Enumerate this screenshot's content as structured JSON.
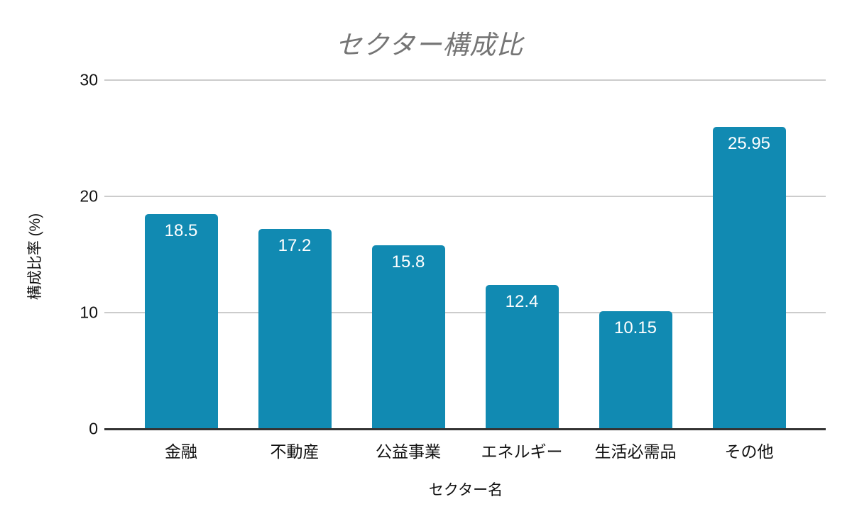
{
  "chart": {
    "title": "セクター構成比",
    "colors": {
      "bar": "#118ab2",
      "grid": "#cccccc",
      "axis_line": "#333333",
      "title_text": "#757575",
      "tick_text": "#111111",
      "value_label_text": "#ffffff"
    }
  },
  "chart_data": {
    "type": "bar",
    "title": "セクター構成比",
    "xlabel": "セクター名",
    "ylabel": "構成比率 (%)",
    "categories": [
      "金融",
      "不動産",
      "公益事業",
      "エネルギー",
      "生活必需品",
      "その他"
    ],
    "values": [
      18.5,
      17.2,
      15.8,
      12.4,
      10.15,
      25.95
    ],
    "value_labels": [
      "18.5",
      "17.2",
      "15.8",
      "12.4",
      "10.15",
      "25.95"
    ],
    "ylim": [
      0,
      30
    ],
    "yticks": [
      0,
      10,
      20,
      30
    ],
    "grid": "horizontal-only",
    "legend": "none",
    "bar_label_position": "inside-top"
  }
}
